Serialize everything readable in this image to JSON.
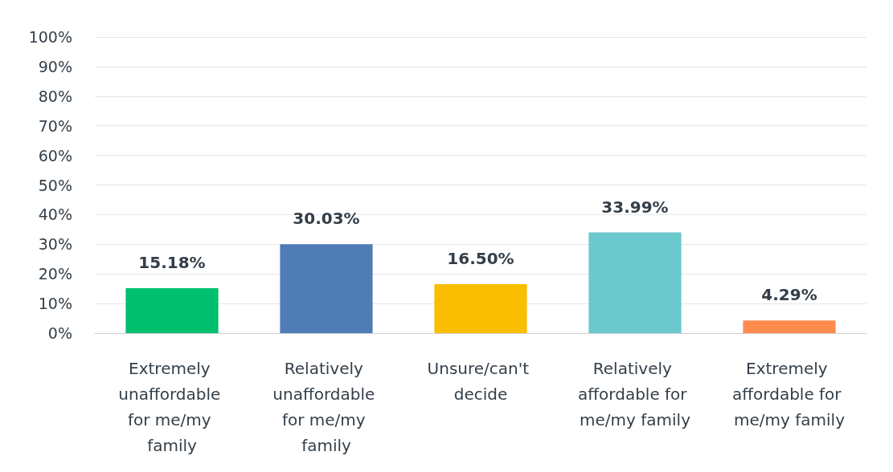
{
  "chart_data": {
    "type": "bar",
    "categories": [
      "Extremely unaffordable for me/my family",
      "Relatively unaffordable for me/my family",
      "Unsure/can't decide",
      "Relatively affordable for me/my family",
      "Extremely affordable for me/my family"
    ],
    "values": [
      15.18,
      30.03,
      16.5,
      33.99,
      4.29
    ],
    "colors": [
      "#00bf6f",
      "#507cb6",
      "#f9be00",
      "#6bc8cd",
      "#ff8b4f"
    ],
    "value_labels": [
      "15.18%",
      "30.03%",
      "16.50%",
      "33.99%",
      "4.29%"
    ],
    "ylim": [
      0,
      100
    ],
    "yticks": [
      {
        "value": 0,
        "label": "0%"
      },
      {
        "value": 10,
        "label": "10%"
      },
      {
        "value": 20,
        "label": "20%"
      },
      {
        "value": 30,
        "label": "30%"
      },
      {
        "value": 40,
        "label": "40%"
      },
      {
        "value": 50,
        "label": "50%"
      },
      {
        "value": 60,
        "label": "60%"
      },
      {
        "value": 70,
        "label": "70%"
      },
      {
        "value": 80,
        "label": "80%"
      },
      {
        "value": 90,
        "label": "90%"
      },
      {
        "value": 100,
        "label": "100%"
      }
    ],
    "grid": "y"
  }
}
